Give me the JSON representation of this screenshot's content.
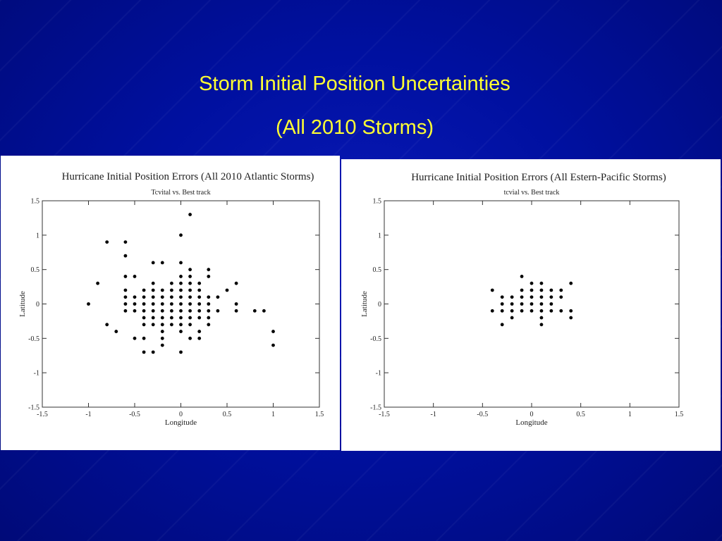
{
  "slide": {
    "title": "Storm Initial Position Uncertainties",
    "subtitle": "(All 2010 Storms)",
    "background_color": "#00008a",
    "title_color": "#ffff33"
  },
  "chart_data": [
    {
      "type": "scatter",
      "title": "Hurricane Initial Position Errors (All 2010 Atlantic Storms)",
      "subtitle": "Tcvital vs. Best track",
      "xlabel": "Longitude",
      "ylabel": "Latitude",
      "xlim": [
        -1.5,
        1.5
      ],
      "ylim": [
        -1.5,
        1.5
      ],
      "xticks": [
        "-1.5",
        "-1",
        "-0.5",
        "0",
        "0.5",
        "1",
        "1.5"
      ],
      "yticks": [
        "-1.5",
        "-1",
        "-0.5",
        "0",
        "0.5",
        "1",
        "1.5"
      ],
      "grid": false,
      "points": [
        [
          -1.0,
          0.0
        ],
        [
          -0.9,
          0.3
        ],
        [
          -0.8,
          0.9
        ],
        [
          -0.8,
          -0.3
        ],
        [
          -0.7,
          -0.4
        ],
        [
          -0.6,
          0.9
        ],
        [
          -0.6,
          0.7
        ],
        [
          -0.6,
          0.4
        ],
        [
          -0.6,
          0.2
        ],
        [
          -0.6,
          0.1
        ],
        [
          -0.6,
          0.0
        ],
        [
          -0.6,
          -0.1
        ],
        [
          -0.5,
          0.4
        ],
        [
          -0.5,
          0.1
        ],
        [
          -0.5,
          0.0
        ],
        [
          -0.5,
          -0.1
        ],
        [
          -0.5,
          -0.5
        ],
        [
          -0.4,
          0.2
        ],
        [
          -0.4,
          0.1
        ],
        [
          -0.4,
          0.0
        ],
        [
          -0.4,
          -0.1
        ],
        [
          -0.4,
          -0.2
        ],
        [
          -0.4,
          -0.3
        ],
        [
          -0.4,
          -0.5
        ],
        [
          -0.4,
          -0.7
        ],
        [
          -0.3,
          0.6
        ],
        [
          -0.3,
          0.3
        ],
        [
          -0.3,
          0.2
        ],
        [
          -0.3,
          0.1
        ],
        [
          -0.3,
          0.0
        ],
        [
          -0.3,
          -0.1
        ],
        [
          -0.3,
          -0.2
        ],
        [
          -0.3,
          -0.3
        ],
        [
          -0.3,
          -0.7
        ],
        [
          -0.2,
          0.6
        ],
        [
          -0.2,
          0.2
        ],
        [
          -0.2,
          0.1
        ],
        [
          -0.2,
          0.0
        ],
        [
          -0.2,
          -0.1
        ],
        [
          -0.2,
          -0.2
        ],
        [
          -0.2,
          -0.3
        ],
        [
          -0.2,
          -0.4
        ],
        [
          -0.2,
          -0.5
        ],
        [
          -0.2,
          -0.6
        ],
        [
          -0.1,
          0.3
        ],
        [
          -0.1,
          0.2
        ],
        [
          -0.1,
          0.1
        ],
        [
          -0.1,
          0.0
        ],
        [
          -0.1,
          -0.1
        ],
        [
          -0.1,
          -0.2
        ],
        [
          -0.1,
          -0.3
        ],
        [
          0.0,
          1.0
        ],
        [
          0.0,
          0.6
        ],
        [
          0.0,
          0.4
        ],
        [
          0.0,
          0.3
        ],
        [
          0.0,
          0.2
        ],
        [
          0.0,
          0.1
        ],
        [
          0.0,
          0.0
        ],
        [
          0.0,
          -0.1
        ],
        [
          0.0,
          -0.2
        ],
        [
          0.0,
          -0.3
        ],
        [
          0.0,
          -0.4
        ],
        [
          0.0,
          -0.7
        ],
        [
          0.1,
          1.3
        ],
        [
          0.1,
          0.5
        ],
        [
          0.1,
          0.4
        ],
        [
          0.1,
          0.3
        ],
        [
          0.1,
          0.2
        ],
        [
          0.1,
          0.1
        ],
        [
          0.1,
          0.0
        ],
        [
          0.1,
          -0.1
        ],
        [
          0.1,
          -0.2
        ],
        [
          0.1,
          -0.3
        ],
        [
          0.1,
          -0.5
        ],
        [
          0.2,
          0.3
        ],
        [
          0.2,
          0.2
        ],
        [
          0.2,
          0.1
        ],
        [
          0.2,
          0.0
        ],
        [
          0.2,
          -0.1
        ],
        [
          0.2,
          -0.2
        ],
        [
          0.2,
          -0.4
        ],
        [
          0.2,
          -0.5
        ],
        [
          0.3,
          0.5
        ],
        [
          0.3,
          0.4
        ],
        [
          0.3,
          0.1
        ],
        [
          0.3,
          0.0
        ],
        [
          0.3,
          -0.1
        ],
        [
          0.3,
          -0.2
        ],
        [
          0.3,
          -0.3
        ],
        [
          0.4,
          0.1
        ],
        [
          0.4,
          -0.1
        ],
        [
          0.5,
          0.2
        ],
        [
          0.6,
          0.3
        ],
        [
          0.6,
          0.0
        ],
        [
          0.6,
          -0.1
        ],
        [
          0.8,
          -0.1
        ],
        [
          0.9,
          -0.1
        ],
        [
          1.0,
          -0.4
        ],
        [
          1.0,
          -0.6
        ]
      ]
    },
    {
      "type": "scatter",
      "title": "Hurricane Initial Position Errors (All Estern-Pacific Storms)",
      "subtitle": "tcvial vs. Best track",
      "xlabel": "Longitude",
      "ylabel": "Latitude",
      "xlim": [
        -1.5,
        1.5
      ],
      "ylim": [
        -1.5,
        1.5
      ],
      "xticks": [
        "-1.5",
        "-1",
        "-0.5",
        "0",
        "0.5",
        "1",
        "1.5"
      ],
      "yticks": [
        "-1.5",
        "-1",
        "-0.5",
        "0",
        "0.5",
        "1",
        "1.5"
      ],
      "grid": false,
      "points": [
        [
          -0.4,
          0.2
        ],
        [
          -0.4,
          -0.1
        ],
        [
          -0.3,
          0.1
        ],
        [
          -0.3,
          0.0
        ],
        [
          -0.3,
          -0.1
        ],
        [
          -0.3,
          -0.3
        ],
        [
          -0.2,
          0.1
        ],
        [
          -0.2,
          0.0
        ],
        [
          -0.2,
          -0.1
        ],
        [
          -0.2,
          -0.2
        ],
        [
          -0.1,
          0.4
        ],
        [
          -0.1,
          0.2
        ],
        [
          -0.1,
          0.1
        ],
        [
          -0.1,
          0.0
        ],
        [
          -0.1,
          -0.1
        ],
        [
          0.0,
          0.3
        ],
        [
          0.0,
          0.2
        ],
        [
          0.0,
          0.1
        ],
        [
          0.0,
          0.0
        ],
        [
          0.0,
          -0.1
        ],
        [
          0.1,
          0.3
        ],
        [
          0.1,
          0.2
        ],
        [
          0.1,
          0.1
        ],
        [
          0.1,
          0.0
        ],
        [
          0.1,
          -0.1
        ],
        [
          0.1,
          -0.2
        ],
        [
          0.1,
          -0.3
        ],
        [
          0.2,
          0.2
        ],
        [
          0.2,
          0.1
        ],
        [
          0.2,
          0.0
        ],
        [
          0.2,
          -0.1
        ],
        [
          0.3,
          0.2
        ],
        [
          0.3,
          0.1
        ],
        [
          0.3,
          -0.1
        ],
        [
          0.4,
          0.3
        ],
        [
          0.4,
          -0.1
        ],
        [
          0.4,
          -0.2
        ]
      ]
    }
  ]
}
